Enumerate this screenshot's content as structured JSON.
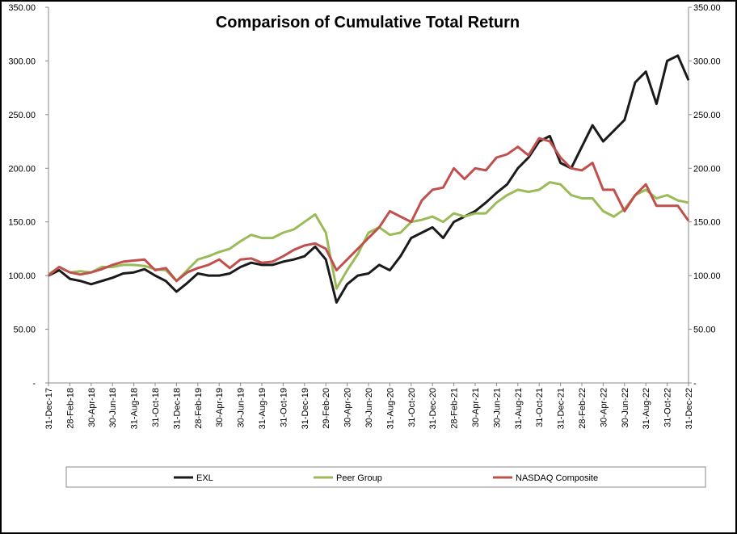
{
  "chart_data": {
    "type": "line",
    "title": "Comparison of Cumulative Total Return",
    "categories": [
      "31-Dec-17",
      null,
      "28-Feb-18",
      null,
      "30-Apr-18",
      null,
      "30-Jun-18",
      null,
      "31-Aug-18",
      null,
      "31-Oct-18",
      null,
      "31-Dec-18",
      null,
      "28-Feb-19",
      null,
      "30-Apr-19",
      null,
      "30-Jun-19",
      null,
      "31-Aug-19",
      null,
      "31-Oct-19",
      null,
      "31-Dec-19",
      null,
      "29-Feb-20",
      null,
      "30-Apr-20",
      null,
      "30-Jun-20",
      null,
      "31-Aug-20",
      null,
      "31-Oct-20",
      null,
      "31-Dec-20",
      null,
      "28-Feb-21",
      null,
      "30-Apr-21",
      null,
      "30-Jun-21",
      null,
      "31-Aug-21",
      null,
      "31-Oct-21",
      null,
      "31-Dec-21",
      null,
      "28-Feb-22",
      null,
      "30-Apr-22",
      null,
      "30-Jun-22",
      null,
      "31-Aug-22",
      null,
      "31-Oct-22",
      null,
      "31-Dec-22"
    ],
    "series": [
      {
        "name": "EXL",
        "color": "#1a1a1a",
        "values": [
          100,
          105,
          97,
          95,
          92,
          95,
          98,
          102,
          103,
          106,
          100,
          95,
          85,
          93,
          102,
          100,
          100,
          102,
          108,
          112,
          110,
          110,
          113,
          115,
          118,
          127,
          115,
          75,
          92,
          100,
          102,
          110,
          105,
          118,
          135,
          140,
          145,
          135,
          150,
          155,
          160,
          168,
          177,
          185,
          200,
          210,
          225,
          230,
          205,
          200,
          220,
          240,
          225,
          235,
          245,
          280,
          290,
          260,
          300,
          305,
          282
        ]
      },
      {
        "name": "Peer Group",
        "color": "#9bbb59",
        "values": [
          101,
          108,
          103,
          104,
          103,
          108,
          108,
          110,
          110,
          109,
          106,
          105,
          95,
          105,
          115,
          118,
          122,
          125,
          132,
          138,
          135,
          135,
          140,
          143,
          150,
          157,
          140,
          88,
          105,
          120,
          140,
          145,
          138,
          140,
          150,
          152,
          155,
          150,
          158,
          155,
          158,
          158,
          168,
          175,
          180,
          178,
          180,
          187,
          185,
          175,
          172,
          172,
          160,
          155,
          162,
          175,
          180,
          172,
          175,
          170,
          168
        ]
      },
      {
        "name": "NASDAQ Composite",
        "color": "#c0504d",
        "values": [
          100,
          108,
          103,
          101,
          103,
          106,
          110,
          113,
          114,
          115,
          105,
          107,
          95,
          103,
          107,
          110,
          115,
          107,
          115,
          116,
          112,
          113,
          118,
          124,
          128,
          130,
          125,
          105,
          115,
          125,
          135,
          145,
          160,
          155,
          150,
          170,
          180,
          182,
          200,
          190,
          200,
          198,
          210,
          213,
          220,
          212,
          228,
          225,
          210,
          200,
          198,
          205,
          180,
          180,
          160,
          175,
          185,
          165,
          165,
          165,
          151
        ]
      }
    ],
    "ylim": [
      0,
      350
    ],
    "yticks": [
      {
        "value": 0,
        "label": "-"
      },
      {
        "value": 50,
        "label": "50.00"
      },
      {
        "value": 100,
        "label": "100.00"
      },
      {
        "value": 150,
        "label": "150.00"
      },
      {
        "value": 200,
        "label": "200.00"
      },
      {
        "value": 250,
        "label": "250.00"
      },
      {
        "value": 300,
        "label": "300.00"
      },
      {
        "value": 350,
        "label": "350.00"
      }
    ],
    "y2lim": [
      0,
      350
    ],
    "y2ticks": [
      {
        "value": 0,
        "label": "-"
      },
      {
        "value": 50,
        "label": "50.00"
      },
      {
        "value": 100,
        "label": "100.00"
      },
      {
        "value": 150,
        "label": "150.00"
      },
      {
        "value": 200,
        "label": "200.00"
      },
      {
        "value": 250,
        "label": "250.00"
      },
      {
        "value": 300,
        "label": "300.00"
      },
      {
        "value": 350,
        "label": "350.00"
      }
    ],
    "legend": "bottom"
  }
}
